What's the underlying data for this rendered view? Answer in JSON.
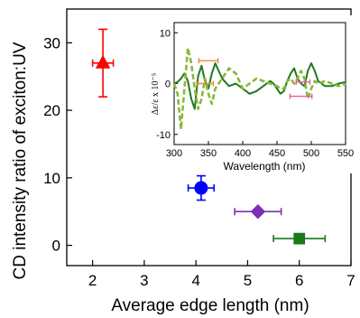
{
  "chart_data": [
    {
      "type": "scatter",
      "title": "",
      "xlabel": "Average edge length (nm)",
      "ylabel": "CD intensity ratio of exciton:UV",
      "xlim": [
        1.5,
        7
      ],
      "ylim": [
        -3,
        35
      ],
      "xticks": [
        2,
        3,
        4,
        5,
        6,
        7
      ],
      "yticks": [
        0,
        10,
        20,
        30
      ],
      "grid": false,
      "legend": "none",
      "points": [
        {
          "x": 2.2,
          "y": 27,
          "xerr": 0.2,
          "yerr_low": 5,
          "yerr_high": 5,
          "marker": "triangle",
          "color": "#ff0000"
        },
        {
          "x": 4.1,
          "y": 8.5,
          "xerr": 0.25,
          "yerr_low": 1.8,
          "yerr_high": 1.8,
          "marker": "circle",
          "color": "#0000ff"
        },
        {
          "x": 5.2,
          "y": 5,
          "xerr": 0.45,
          "yerr_low": 0,
          "yerr_high": 0,
          "marker": "diamond",
          "color": "#7e2fb5"
        },
        {
          "x": 6.0,
          "y": 1,
          "xerr": 0.5,
          "yerr_low": 0,
          "yerr_high": 0,
          "marker": "square",
          "color": "#1a7a1a"
        }
      ]
    },
    {
      "type": "line",
      "title": "",
      "xlabel": "Wavelength (nm)",
      "ylabel": "Δε/ε x 10⁻⁵",
      "xlim": [
        300,
        550
      ],
      "ylim": [
        -12,
        12
      ],
      "xticks": [
        300,
        350,
        400,
        450,
        500,
        550
      ],
      "yticks": [
        -10,
        0,
        10
      ],
      "grid": false,
      "legend": "none",
      "series": [
        {
          "style": "solid",
          "color": "#1f7a1f",
          "x": [
            300,
            305,
            310,
            315,
            320,
            325,
            330,
            335,
            340,
            345,
            350,
            355,
            360,
            370,
            380,
            390,
            400,
            410,
            420,
            430,
            440,
            445,
            450,
            455,
            460,
            465,
            470,
            475,
            480,
            485,
            490,
            495,
            500,
            505,
            510,
            520,
            530,
            540,
            550
          ],
          "y": [
            0,
            0.3,
            1,
            2,
            0.5,
            -3,
            -5,
            1.5,
            3.5,
            0.5,
            -1,
            2,
            4,
            1,
            -0.5,
            0,
            -1,
            -2,
            -1.5,
            -0.5,
            0.5,
            0,
            -1,
            -2,
            -1.5,
            0.5,
            2,
            3,
            1,
            0,
            -0.5,
            2.5,
            4,
            2.5,
            0.5,
            -0.5,
            -0.5,
            0,
            0.3
          ]
        },
        {
          "style": "dashed",
          "color": "#8ab83a",
          "x": [
            300,
            305,
            310,
            315,
            320,
            325,
            330,
            335,
            340,
            345,
            350,
            355,
            360,
            370,
            380,
            390,
            400,
            410,
            420,
            430,
            440,
            450,
            455,
            460,
            465,
            470,
            475,
            480,
            485,
            490,
            495,
            500,
            505,
            510,
            520,
            530,
            540,
            550
          ],
          "y": [
            0,
            -2,
            -9,
            -1,
            7,
            4,
            -1,
            -5,
            -3,
            1,
            -2,
            -4,
            -1,
            1,
            3,
            2,
            -1,
            0,
            1,
            0.5,
            0,
            -0.5,
            -1,
            -1,
            0.5,
            1,
            0,
            1,
            2.5,
            1,
            -3,
            -1,
            0.5,
            0,
            0.5,
            0,
            -0.5,
            0
          ]
        }
      ],
      "markers": [
        {
          "x": 350,
          "y": 4.5,
          "half_width": 14,
          "color": "#f08a3a"
        },
        {
          "x": 345,
          "y": 0,
          "half_width": 12,
          "color": "#f08a3a"
        },
        {
          "x": 485,
          "y": -2.5,
          "half_width": 16,
          "color": "#ee5a9a"
        },
        {
          "x": 488,
          "y": 0.3,
          "half_width": 10,
          "color": "#ee5a9a"
        }
      ]
    }
  ]
}
